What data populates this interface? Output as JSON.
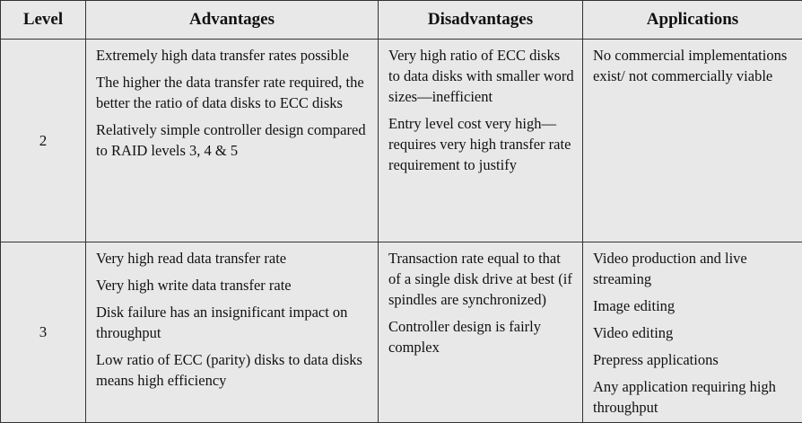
{
  "headers": {
    "level": "Level",
    "advantages": "Advantages",
    "disadvantages": "Disadvantages",
    "applications": "Applications"
  },
  "rows": [
    {
      "level": "2",
      "advantages": [
        "Extremely high data transfer rates possible",
        "The higher the data transfer rate required, the better the ratio of data disks to ECC disks",
        "Relatively simple controller design compared to RAID levels 3, 4 & 5"
      ],
      "disadvantages": [
        "Very high ratio of ECC disks to data disks with smaller word sizes—inefficient",
        "Entry level cost very high—requires very high transfer rate requirement to justify"
      ],
      "applications": [
        "No commercial implementations exist/ not commercially viable"
      ]
    },
    {
      "level": "3",
      "advantages": [
        "Very high read data transfer rate",
        "Very high write data transfer rate",
        "Disk failure has an insignificant impact on throughput",
        "Low ratio of ECC (parity) disks to data disks means high efficiency"
      ],
      "disadvantages": [
        "Transaction rate equal to that of a single disk drive at best (if spindles are synchronized)",
        "Controller design is fairly complex"
      ],
      "applications": [
        "Video production and live streaming",
        "Image editing",
        "Video editing",
        "Prepress applications",
        "Any application requiring high throughput"
      ]
    }
  ]
}
